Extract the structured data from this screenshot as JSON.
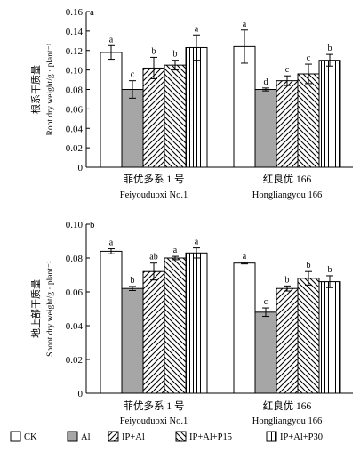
{
  "chart_data": [
    {
      "type": "bar",
      "panel_letter": "a",
      "ylabel_cn": "根系干质量",
      "ylabel_en": "Root dry weight/g · plant⁻¹",
      "ylim": [
        0,
        0.16
      ],
      "yticks": [
        "0",
        "0.02",
        "0.04",
        "0.06",
        "0.08",
        "0.10",
        "0.12",
        "0.14",
        "0.16"
      ],
      "categories": [
        {
          "cn": "菲优多系 1 号",
          "en": "Feiyouduoxi No.1"
        },
        {
          "cn": "红良优 166",
          "en": "Hongliangyou 166"
        }
      ],
      "series": [
        {
          "name": "CK",
          "values": [
            0.118,
            0.124
          ],
          "errors": [
            0.007,
            0.017
          ],
          "letters": [
            "a",
            "a"
          ]
        },
        {
          "name": "Al",
          "values": [
            0.08,
            0.08
          ],
          "errors": [
            0.009,
            0.0015
          ],
          "letters": [
            "c",
            "d"
          ]
        },
        {
          "name": "IP+Al",
          "values": [
            0.102,
            0.089
          ],
          "errors": [
            0.011,
            0.005
          ],
          "letters": [
            "b",
            "c"
          ]
        },
        {
          "name": "IP+Al+P15",
          "values": [
            0.105,
            0.096
          ],
          "errors": [
            0.005,
            0.01
          ],
          "letters": [
            "b",
            "c"
          ]
        },
        {
          "name": "IP+Al+P30",
          "values": [
            0.123,
            0.11
          ],
          "errors": [
            0.013,
            0.006
          ],
          "letters": [
            "a",
            "b"
          ]
        }
      ]
    },
    {
      "type": "bar",
      "panel_letter": "b",
      "ylabel_cn": "地上部干质量",
      "ylabel_en": "Shoot dry weight/g · plant⁻¹",
      "ylim": [
        0,
        0.1
      ],
      "yticks": [
        "0",
        "0.02",
        "0.04",
        "0.06",
        "0.08",
        "0.10"
      ],
      "categories": [
        {
          "cn": "菲优多系 1 号",
          "en": "Feiyouduoxi No.1"
        },
        {
          "cn": "红良优 166",
          "en": "Hongliangyou 166"
        }
      ],
      "series": [
        {
          "name": "CK",
          "values": [
            0.084,
            0.077
          ],
          "errors": [
            0.0015,
            0.0005
          ],
          "letters": [
            "a",
            "a"
          ]
        },
        {
          "name": "Al",
          "values": [
            0.062,
            0.048
          ],
          "errors": [
            0.0012,
            0.0025
          ],
          "letters": [
            "b",
            "c"
          ]
        },
        {
          "name": "IP+Al",
          "values": [
            0.072,
            0.062
          ],
          "errors": [
            0.005,
            0.0015
          ],
          "letters": [
            "ab",
            "b"
          ]
        },
        {
          "name": "IP+Al+P15",
          "values": [
            0.08,
            0.068
          ],
          "errors": [
            0.001,
            0.004
          ],
          "letters": [
            "a",
            "b"
          ]
        },
        {
          "name": "IP+Al+P30",
          "values": [
            0.083,
            0.066
          ],
          "errors": [
            0.003,
            0.0035
          ],
          "letters": [
            "a",
            "b"
          ]
        }
      ]
    }
  ],
  "legend": {
    "items": [
      {
        "label": "CK",
        "pattern": "white"
      },
      {
        "label": "Al",
        "pattern": "gray"
      },
      {
        "label": "IP+Al",
        "pattern": "diag-forward"
      },
      {
        "label": "IP+Al+P15",
        "pattern": "diag-backward"
      },
      {
        "label": "IP+Al+P30",
        "pattern": "vertical"
      }
    ]
  },
  "colors": {
    "bar_outline": "#000000",
    "al_fill": "#a6a6a6",
    "background": "#ffffff"
  }
}
